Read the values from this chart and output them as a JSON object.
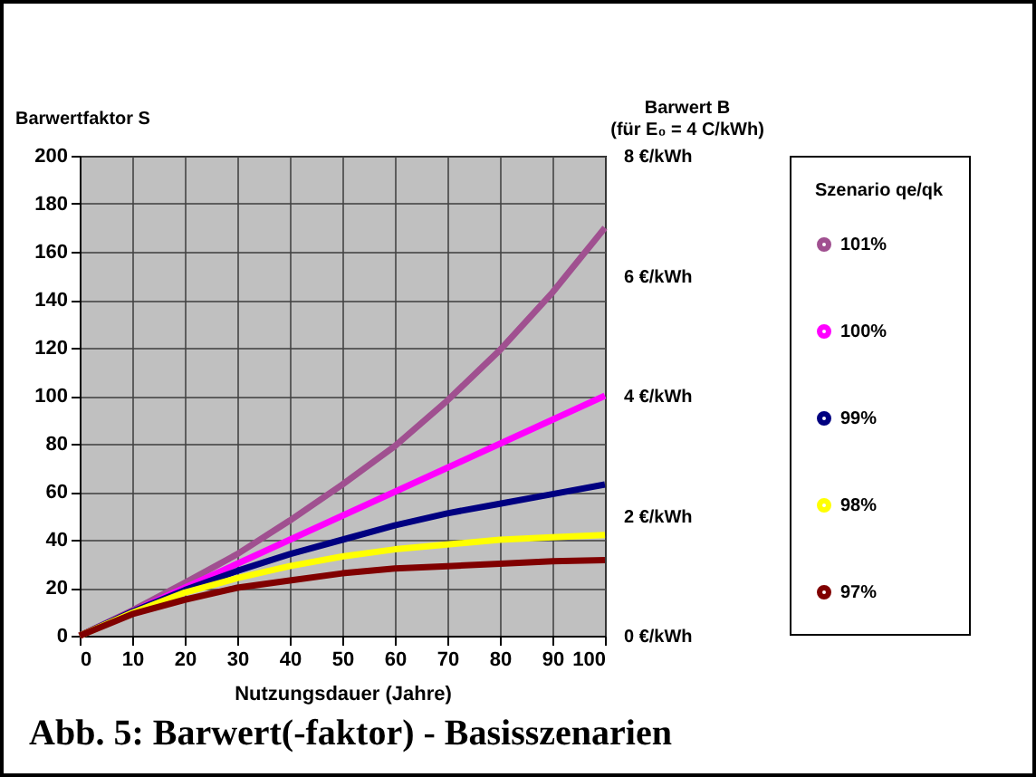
{
  "chart_data": {
    "type": "line",
    "ylabel": "Barwertfaktor S",
    "y2label": "Barwert B\n(für E₀ = 4 C/kWh)",
    "xlabel": "Nutzungsdauer (Jahre)",
    "legend_title": "Szenario qe/qk",
    "legend": "right",
    "grid": true,
    "x": [
      0,
      10,
      20,
      30,
      40,
      50,
      60,
      70,
      80,
      90,
      100
    ],
    "xlim": [
      0,
      100
    ],
    "xticks": [
      0,
      10,
      20,
      30,
      40,
      50,
      60,
      70,
      80,
      90,
      100
    ],
    "ylim": [
      0,
      200
    ],
    "yticks": [
      0,
      20,
      40,
      60,
      80,
      100,
      120,
      140,
      160,
      180,
      200
    ],
    "y2lim": [
      0,
      8
    ],
    "y2ticks": [
      {
        "value": 0,
        "label": "0 €/kWh"
      },
      {
        "value": 2,
        "label": "2 €/kWh"
      },
      {
        "value": 4,
        "label": "4 €/kWh"
      },
      {
        "value": 6,
        "label": "6 €/kWh"
      },
      {
        "value": 8,
        "label": "8 €/kWh"
      }
    ],
    "series": [
      {
        "name": "101%",
        "color": "#a05090",
        "values": [
          0,
          10.5,
          22,
          34,
          48,
          63,
          79,
          98,
          119,
          143,
          170
        ]
      },
      {
        "name": "100%",
        "color": "#ff00ff",
        "values": [
          0,
          10,
          20,
          30,
          40,
          50,
          60,
          70,
          80,
          90,
          100
        ]
      },
      {
        "name": "99%",
        "color": "#000080",
        "values": [
          0,
          10,
          19,
          27,
          34,
          40,
          46,
          51,
          55,
          59,
          63
        ]
      },
      {
        "name": "98%",
        "color": "#ffff00",
        "values": [
          0,
          9.5,
          18,
          24,
          29,
          33,
          36,
          38,
          40,
          41,
          42
        ]
      },
      {
        "name": "97%",
        "color": "#800000",
        "values": [
          0,
          9,
          15,
          20,
          23,
          26,
          28,
          29,
          30,
          31,
          31.5
        ]
      }
    ],
    "annotations": [
      "Abb. 5: Barwert(-faktor) - Basisszenarien"
    ]
  }
}
